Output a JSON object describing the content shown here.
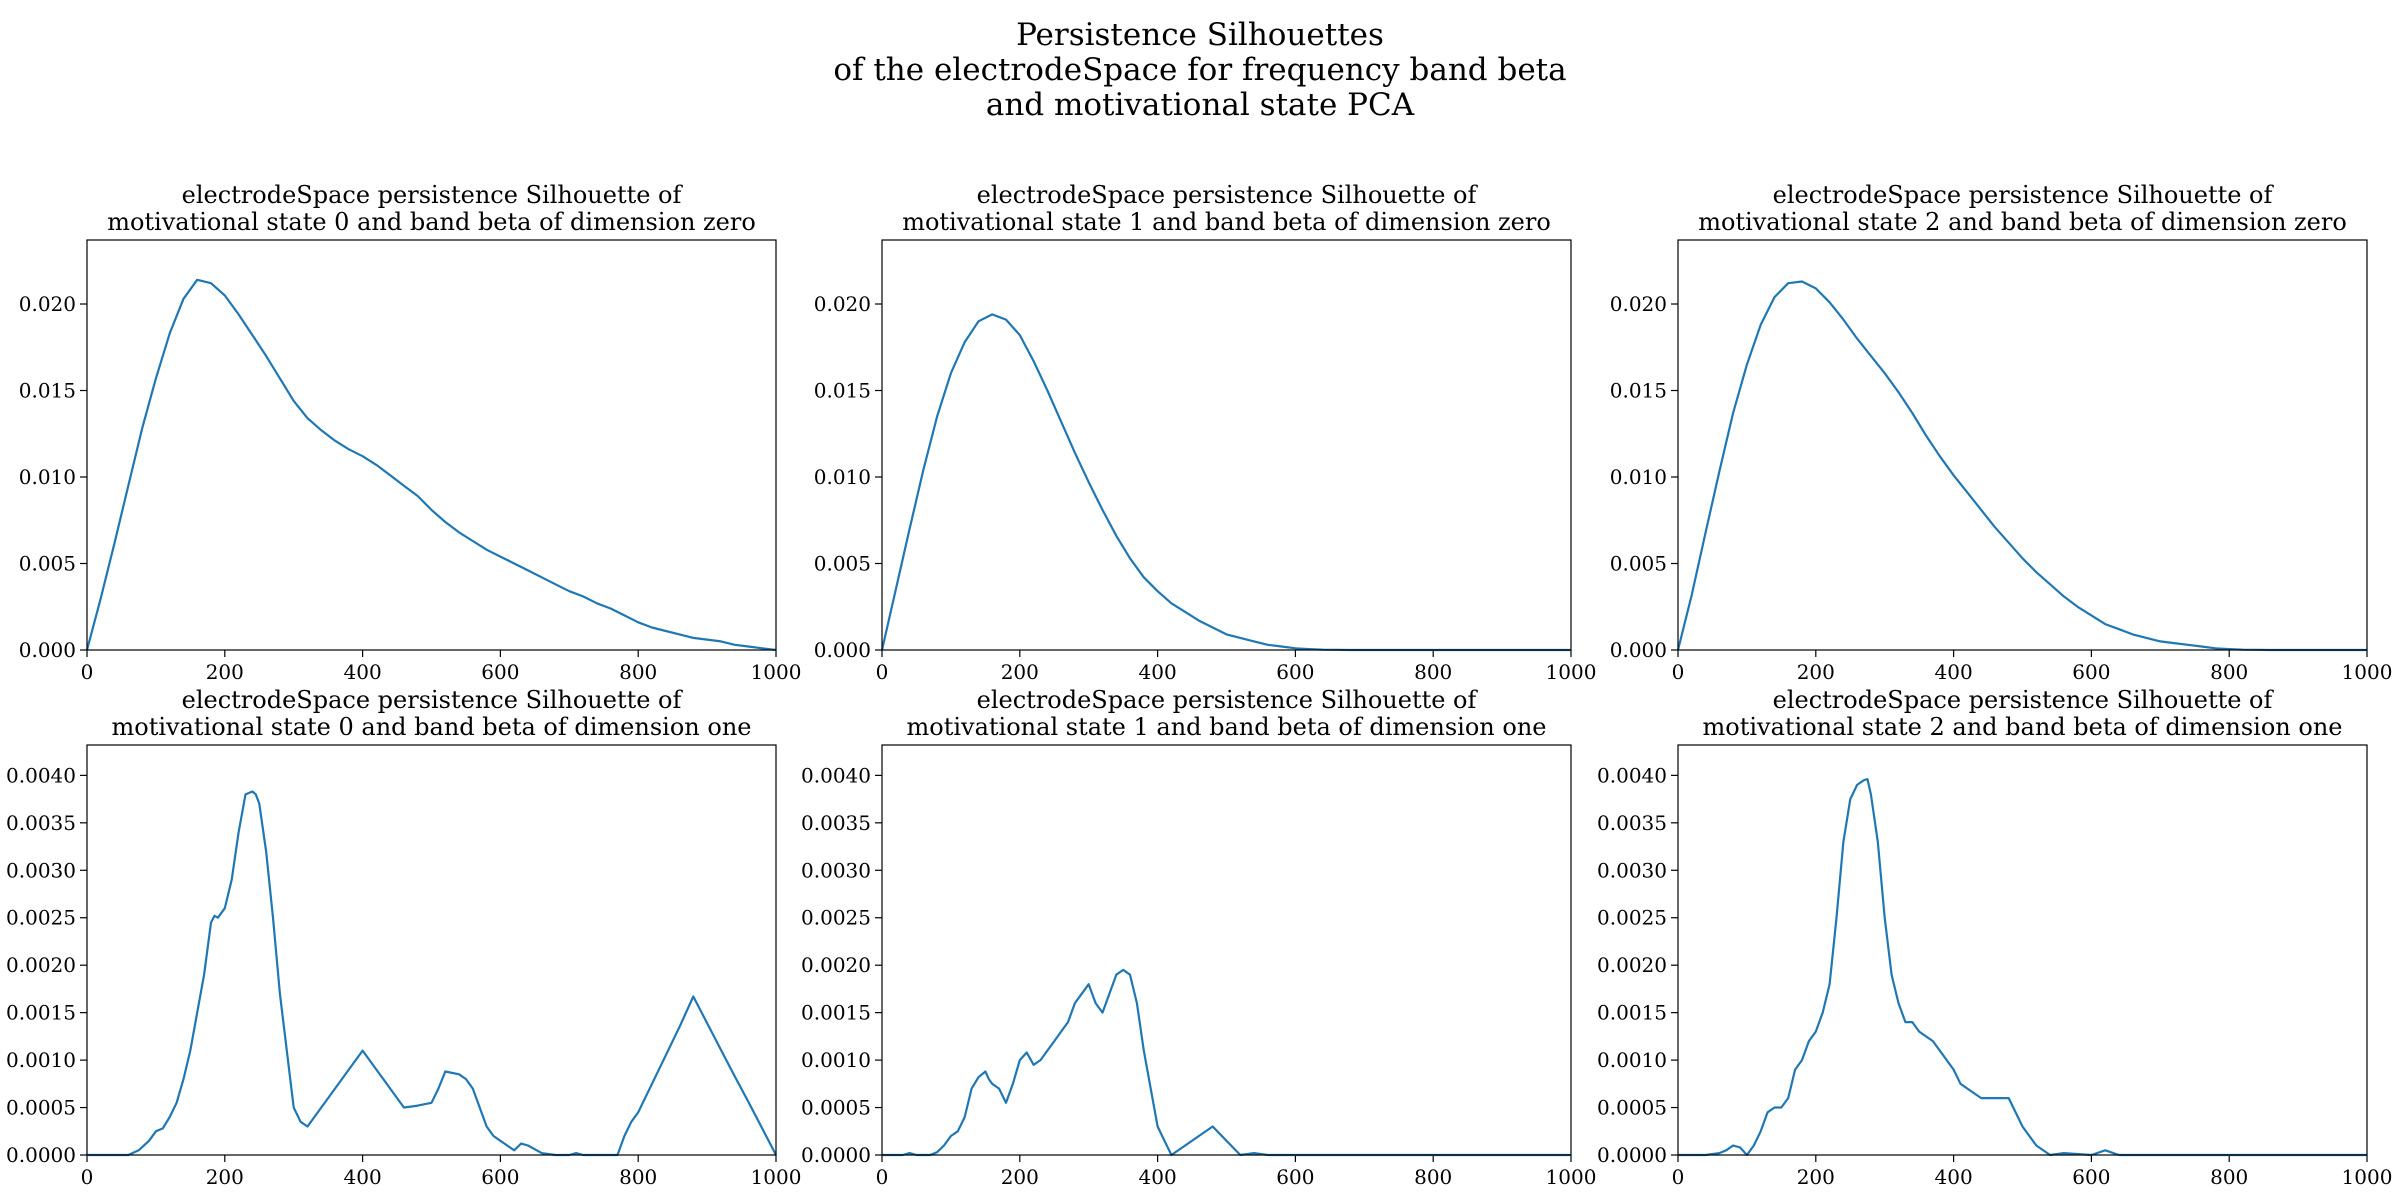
{
  "figure": {
    "suptitle": [
      "Persistence Silhouettes",
      "of the electrodeSpace for frequency band beta",
      "and motivational state PCA"
    ],
    "line_color": "#1f77b4"
  },
  "chart_data": [
    {
      "type": "line",
      "title": [
        "electrodeSpace persistence Silhouette of",
        "motivational state 0 and band beta of dimension zero"
      ],
      "xlabel": "",
      "ylabel": "",
      "xlim": [
        0,
        1000
      ],
      "ylim": [
        0,
        0.0237
      ],
      "xticks": [
        "0",
        "200",
        "400",
        "600",
        "800",
        "1000"
      ],
      "yticks": [
        "0.000",
        "0.005",
        "0.010",
        "0.015",
        "0.020"
      ],
      "yticks_values": [
        0,
        0.005,
        0.01,
        0.015,
        0.02
      ],
      "x": [
        0,
        20,
        40,
        60,
        80,
        100,
        120,
        140,
        160,
        180,
        200,
        220,
        240,
        260,
        280,
        300,
        320,
        340,
        360,
        380,
        400,
        420,
        440,
        460,
        480,
        500,
        520,
        540,
        560,
        580,
        600,
        620,
        640,
        660,
        680,
        700,
        720,
        740,
        760,
        780,
        800,
        820,
        840,
        860,
        880,
        900,
        920,
        940,
        960,
        980,
        1000
      ],
      "y": [
        0.0,
        0.003,
        0.0062,
        0.0095,
        0.0128,
        0.0157,
        0.0183,
        0.0203,
        0.0214,
        0.0212,
        0.0205,
        0.0194,
        0.0182,
        0.017,
        0.0157,
        0.0144,
        0.0134,
        0.0127,
        0.0121,
        0.0116,
        0.0112,
        0.0107,
        0.0101,
        0.0095,
        0.0089,
        0.0081,
        0.0074,
        0.0068,
        0.0063,
        0.0058,
        0.0054,
        0.005,
        0.0046,
        0.0042,
        0.0038,
        0.0034,
        0.0031,
        0.0027,
        0.0024,
        0.002,
        0.0016,
        0.0013,
        0.0011,
        0.0009,
        0.0007,
        0.0006,
        0.0005,
        0.0003,
        0.0002,
        0.0001,
        0.0
      ]
    },
    {
      "type": "line",
      "title": [
        "electrodeSpace persistence Silhouette of",
        "motivational state 1 and band beta of dimension zero"
      ],
      "xlabel": "",
      "ylabel": "",
      "xlim": [
        0,
        1000
      ],
      "ylim": [
        0,
        0.0237
      ],
      "xticks": [
        "0",
        "200",
        "400",
        "600",
        "800",
        "1000"
      ],
      "yticks": [
        "0.000",
        "0.005",
        "0.010",
        "0.015",
        "0.020"
      ],
      "yticks_values": [
        0,
        0.005,
        0.01,
        0.015,
        0.02
      ],
      "x": [
        0,
        20,
        40,
        60,
        80,
        100,
        120,
        140,
        160,
        180,
        200,
        220,
        240,
        260,
        280,
        300,
        320,
        340,
        360,
        380,
        400,
        420,
        440,
        460,
        480,
        500,
        520,
        540,
        560,
        580,
        600,
        620,
        640,
        660,
        680,
        700,
        750,
        800,
        1000
      ],
      "y": [
        0.0,
        0.0035,
        0.007,
        0.0104,
        0.0135,
        0.016,
        0.0178,
        0.019,
        0.0194,
        0.0191,
        0.0182,
        0.0167,
        0.015,
        0.0132,
        0.0114,
        0.0097,
        0.0081,
        0.0066,
        0.0053,
        0.0042,
        0.0034,
        0.0027,
        0.0022,
        0.0017,
        0.0013,
        0.0009,
        0.0007,
        0.0005,
        0.0003,
        0.0002,
        0.0001,
        5e-05,
        2e-05,
        1e-05,
        0.0,
        0.0,
        0.0,
        0.0,
        0.0
      ]
    },
    {
      "type": "line",
      "title": [
        "electrodeSpace persistence Silhouette of",
        "motivational state 2 and band beta of dimension zero"
      ],
      "xlabel": "",
      "ylabel": "",
      "xlim": [
        0,
        1000
      ],
      "ylim": [
        0,
        0.0237
      ],
      "xticks": [
        "0",
        "200",
        "400",
        "600",
        "800",
        "1000"
      ],
      "yticks": [
        "0.000",
        "0.005",
        "0.010",
        "0.015",
        "0.020"
      ],
      "yticks_values": [
        0,
        0.005,
        0.01,
        0.015,
        0.02
      ],
      "x": [
        0,
        20,
        40,
        60,
        80,
        100,
        120,
        140,
        160,
        180,
        200,
        220,
        240,
        260,
        280,
        300,
        320,
        340,
        360,
        380,
        400,
        420,
        440,
        460,
        480,
        500,
        520,
        540,
        560,
        580,
        600,
        620,
        640,
        660,
        680,
        700,
        720,
        740,
        760,
        780,
        800,
        820,
        840,
        860,
        880,
        900,
        1000
      ],
      "y": [
        0.0,
        0.0032,
        0.0068,
        0.0103,
        0.0137,
        0.0165,
        0.0188,
        0.0204,
        0.0212,
        0.0213,
        0.0209,
        0.0201,
        0.0191,
        0.018,
        0.017,
        0.016,
        0.0149,
        0.0137,
        0.0124,
        0.0112,
        0.0101,
        0.0091,
        0.0081,
        0.0071,
        0.0062,
        0.0053,
        0.0045,
        0.0038,
        0.0031,
        0.0025,
        0.002,
        0.0015,
        0.0012,
        0.0009,
        0.0007,
        0.0005,
        0.0004,
        0.0003,
        0.0002,
        0.0001,
        5e-05,
        2e-05,
        1e-05,
        0.0,
        0.0,
        0.0,
        0.0
      ]
    },
    {
      "type": "line",
      "title": [
        "electrodeSpace persistence Silhouette of",
        "motivational state 0 and band beta of dimension one"
      ],
      "xlabel": "",
      "ylabel": "",
      "xlim": [
        0,
        1000
      ],
      "ylim": [
        0,
        0.00432
      ],
      "xticks": [
        "0",
        "200",
        "400",
        "600",
        "800",
        "1000"
      ],
      "yticks": [
        "0.0000",
        "0.0005",
        "0.0010",
        "0.0015",
        "0.0020",
        "0.0025",
        "0.0030",
        "0.0035",
        "0.0040"
      ],
      "yticks_values": [
        0,
        0.0005,
        0.001,
        0.0015,
        0.002,
        0.0025,
        0.003,
        0.0035,
        0.004
      ],
      "x": [
        0,
        60,
        75,
        90,
        100,
        110,
        120,
        130,
        140,
        150,
        160,
        170,
        180,
        185,
        190,
        200,
        210,
        220,
        230,
        240,
        245,
        250,
        260,
        270,
        280,
        290,
        300,
        310,
        320,
        330,
        340,
        360,
        380,
        400,
        410,
        420,
        440,
        460,
        470,
        480,
        500,
        510,
        520,
        540,
        550,
        560,
        570,
        580,
        590,
        600,
        620,
        630,
        640,
        660,
        680,
        700,
        710,
        720,
        740,
        770,
        780,
        790,
        800,
        820,
        840,
        860,
        880,
        900,
        920,
        940,
        960,
        980,
        1000
      ],
      "y": [
        0.0,
        0.0,
        5e-05,
        0.00015,
        0.00025,
        0.00028,
        0.0004,
        0.00055,
        0.0008,
        0.0011,
        0.0015,
        0.0019,
        0.00245,
        0.00252,
        0.0025,
        0.0026,
        0.0029,
        0.0034,
        0.0038,
        0.00383,
        0.0038,
        0.0037,
        0.0032,
        0.0025,
        0.0017,
        0.0011,
        0.0005,
        0.00035,
        0.0003,
        0.0004,
        0.0005,
        0.0007,
        0.0009,
        0.0011,
        0.001,
        0.0009,
        0.0007,
        0.0005,
        0.00051,
        0.00052,
        0.00055,
        0.0007,
        0.00088,
        0.00085,
        0.0008,
        0.0007,
        0.0005,
        0.0003,
        0.0002,
        0.00015,
        5e-05,
        0.00012,
        0.0001,
        2e-05,
        0.0,
        0.0,
        2e-05,
        0.0,
        0.0,
        0.0,
        0.0002,
        0.00035,
        0.00045,
        0.00075,
        0.00105,
        0.00135,
        0.00167,
        0.00139,
        0.00111,
        0.00083,
        0.00056,
        0.00028,
        0.0
      ]
    },
    {
      "type": "line",
      "title": [
        "electrodeSpace persistence Silhouette of",
        "motivational state 1 and band beta of dimension one"
      ],
      "xlabel": "",
      "ylabel": "",
      "xlim": [
        0,
        1000
      ],
      "ylim": [
        0,
        0.00432
      ],
      "xticks": [
        "0",
        "200",
        "400",
        "600",
        "800",
        "1000"
      ],
      "yticks": [
        "0.0000",
        "0.0005",
        "0.0010",
        "0.0015",
        "0.0020",
        "0.0025",
        "0.0030",
        "0.0035",
        "0.0040"
      ],
      "yticks_values": [
        0,
        0.0005,
        0.001,
        0.0015,
        0.002,
        0.0025,
        0.003,
        0.0035,
        0.004
      ],
      "x": [
        0,
        30,
        40,
        50,
        60,
        70,
        80,
        90,
        100,
        110,
        120,
        130,
        140,
        150,
        155,
        160,
        170,
        180,
        190,
        200,
        210,
        220,
        230,
        240,
        250,
        260,
        270,
        280,
        290,
        300,
        310,
        320,
        330,
        340,
        350,
        360,
        370,
        380,
        390,
        400,
        410,
        420,
        440,
        460,
        480,
        500,
        520,
        540,
        560,
        600,
        1000
      ],
      "y": [
        0.0,
        0.0,
        2e-05,
        0.0,
        0.0,
        0.0,
        3e-05,
        0.0001,
        0.0002,
        0.00025,
        0.0004,
        0.0007,
        0.00082,
        0.00088,
        0.0008,
        0.00075,
        0.0007,
        0.00055,
        0.00075,
        0.001,
        0.00108,
        0.00095,
        0.001,
        0.0011,
        0.0012,
        0.0013,
        0.0014,
        0.0016,
        0.0017,
        0.0018,
        0.0016,
        0.0015,
        0.0017,
        0.0019,
        0.00195,
        0.0019,
        0.0016,
        0.0011,
        0.0007,
        0.0003,
        0.00015,
        0.0,
        0.0001,
        0.0002,
        0.0003,
        0.00015,
        0.0,
        2e-05,
        0.0,
        0.0,
        0.0
      ]
    },
    {
      "type": "line",
      "title": [
        "electrodeSpace persistence Silhouette of",
        "motivational state 2 and band beta of dimension one"
      ],
      "xlabel": "",
      "ylabel": "",
      "xlim": [
        0,
        1000
      ],
      "ylim": [
        0,
        0.00432
      ],
      "xticks": [
        "0",
        "200",
        "400",
        "600",
        "800",
        "1000"
      ],
      "yticks": [
        "0.0000",
        "0.0005",
        "0.0010",
        "0.0015",
        "0.0020",
        "0.0025",
        "0.0030",
        "0.0035",
        "0.0040"
      ],
      "yticks_values": [
        0,
        0.0005,
        0.001,
        0.0015,
        0.002,
        0.0025,
        0.003,
        0.0035,
        0.004
      ],
      "x": [
        0,
        40,
        60,
        70,
        80,
        90,
        100,
        110,
        120,
        130,
        140,
        150,
        160,
        170,
        180,
        190,
        200,
        210,
        220,
        230,
        240,
        250,
        260,
        270,
        275,
        280,
        290,
        300,
        310,
        320,
        330,
        340,
        350,
        360,
        370,
        380,
        390,
        400,
        410,
        420,
        440,
        460,
        480,
        500,
        520,
        540,
        560,
        600,
        620,
        640,
        680,
        700,
        1000
      ],
      "y": [
        0.0,
        0.0,
        2e-05,
        5e-05,
        0.0001,
        8e-05,
        0.0,
        0.0001,
        0.00025,
        0.00045,
        0.0005,
        0.0005,
        0.0006,
        0.0009,
        0.001,
        0.0012,
        0.0013,
        0.0015,
        0.0018,
        0.0025,
        0.0033,
        0.00375,
        0.0039,
        0.00395,
        0.00396,
        0.0038,
        0.0033,
        0.0025,
        0.0019,
        0.0016,
        0.0014,
        0.0014,
        0.0013,
        0.00125,
        0.0012,
        0.0011,
        0.001,
        0.0009,
        0.00075,
        0.0007,
        0.0006,
        0.0006,
        0.0006,
        0.0003,
        0.0001,
        0.0,
        2e-05,
        0.0,
        5e-05,
        0.0,
        0.0,
        0.0,
        0.0
      ]
    }
  ]
}
